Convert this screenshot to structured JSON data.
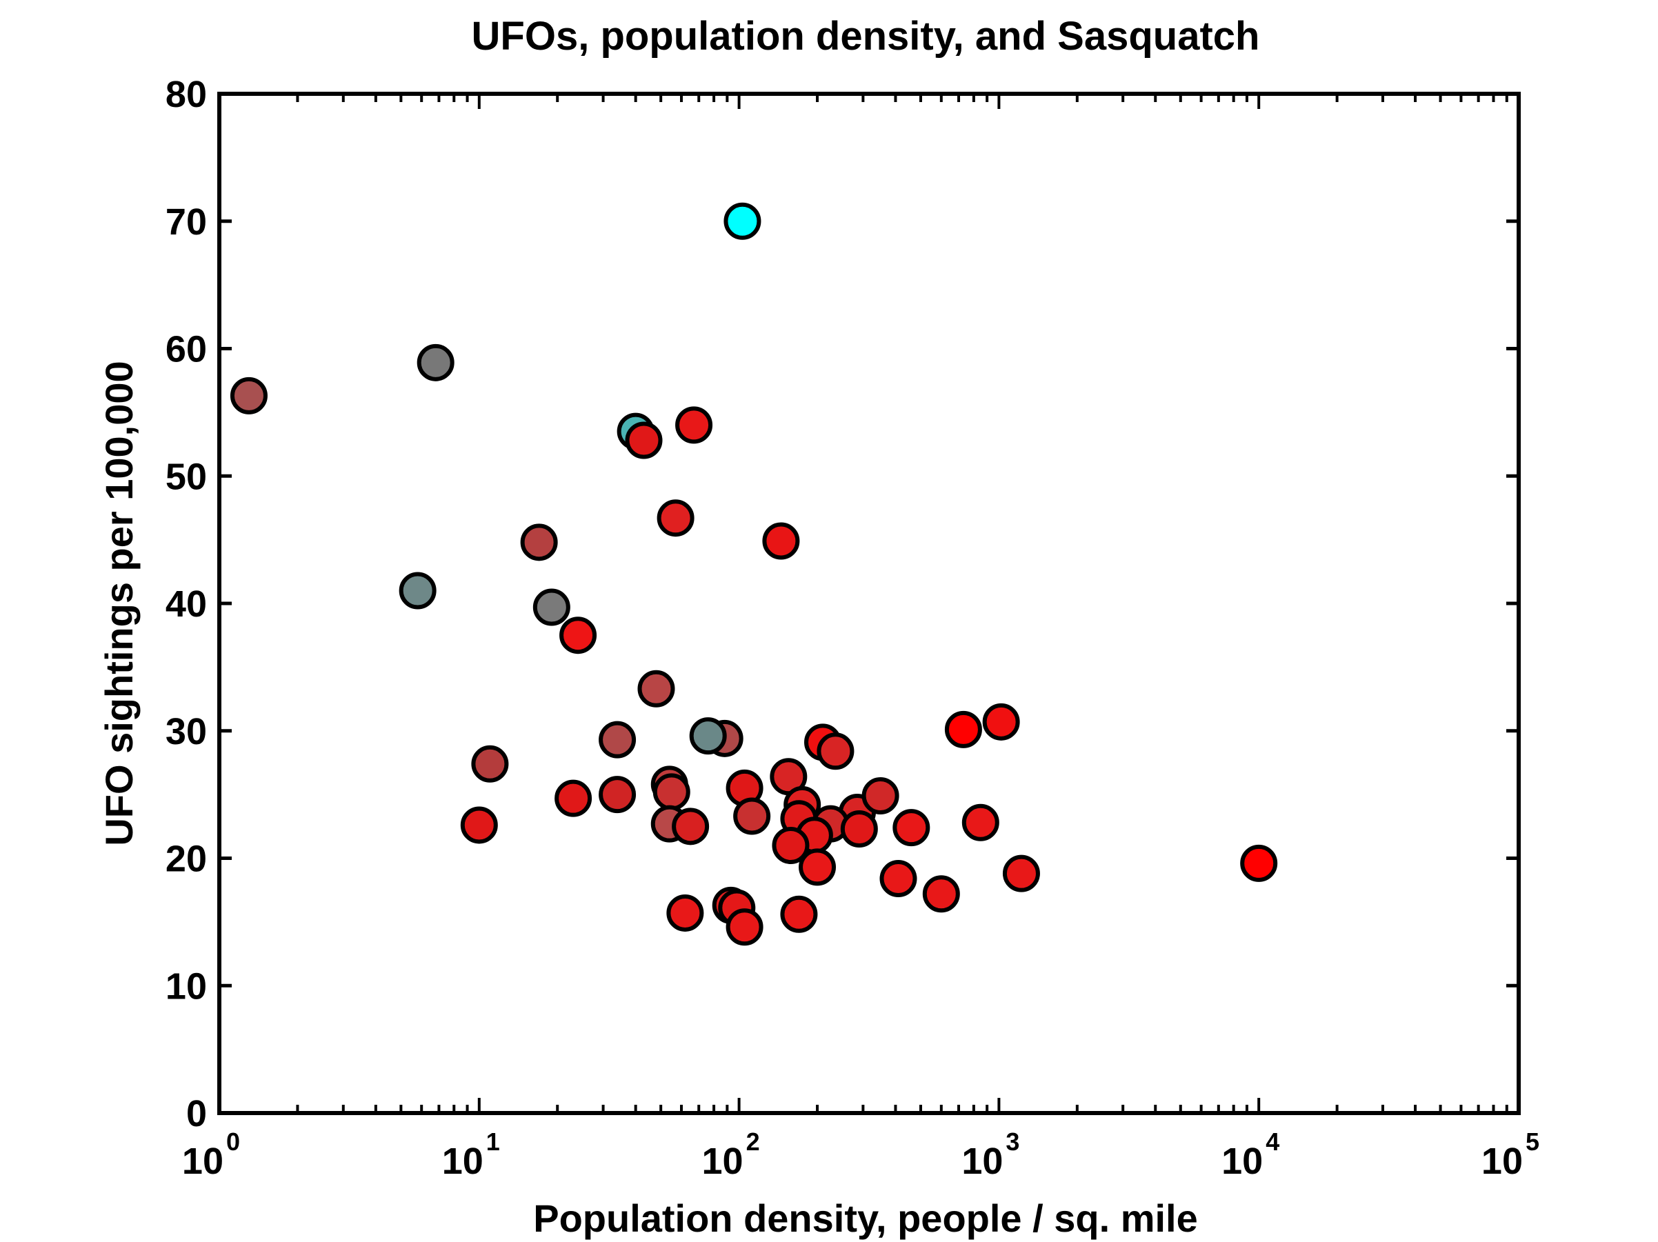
{
  "chart_data": {
    "type": "scatter",
    "title": "UFOs, population density, and Sasquatch",
    "xlabel": "Population density, people / sq. mile",
    "ylabel": "UFO sightings per 100,000",
    "xscale": "log",
    "xlim": [
      1,
      100000
    ],
    "ylim": [
      0,
      80
    ],
    "x_tick_base": "10",
    "x_tick_exponents": [
      "0",
      "1",
      "2",
      "3",
      "4",
      "5"
    ],
    "y_ticks": [
      "0",
      "10",
      "20",
      "30",
      "40",
      "50",
      "60",
      "70",
      "80"
    ],
    "grid": false,
    "points": [
      {
        "x": 1.3,
        "y": 56.3,
        "color": "#a85050"
      },
      {
        "x": 6.8,
        "y": 58.9,
        "color": "#787878"
      },
      {
        "x": 5.8,
        "y": 41.0,
        "color": "#6e8888"
      },
      {
        "x": 17,
        "y": 44.8,
        "color": "#b44040"
      },
      {
        "x": 19,
        "y": 39.7,
        "color": "#7a7a7a"
      },
      {
        "x": 24,
        "y": 37.5,
        "color": "#ee1515"
      },
      {
        "x": 40,
        "y": 53.5,
        "color": "#4ab4b4"
      },
      {
        "x": 43,
        "y": 52.8,
        "color": "#e01818"
      },
      {
        "x": 67,
        "y": 54.0,
        "color": "#e81818"
      },
      {
        "x": 57,
        "y": 46.7,
        "color": "#e02020"
      },
      {
        "x": 145,
        "y": 44.9,
        "color": "#e81515"
      },
      {
        "x": 103,
        "y": 70.0,
        "color": "#00ffff"
      },
      {
        "x": 48,
        "y": 33.3,
        "color": "#b84545"
      },
      {
        "x": 34,
        "y": 29.3,
        "color": "#b04848"
      },
      {
        "x": 11,
        "y": 27.4,
        "color": "#b43c3c"
      },
      {
        "x": 10,
        "y": 22.6,
        "color": "#e01818"
      },
      {
        "x": 23,
        "y": 24.7,
        "color": "#e01818"
      },
      {
        "x": 34,
        "y": 25.0,
        "color": "#d02424"
      },
      {
        "x": 88,
        "y": 29.4,
        "color": "#b04848"
      },
      {
        "x": 76,
        "y": 29.6,
        "color": "#6a8888"
      },
      {
        "x": 54,
        "y": 25.8,
        "color": "#c03c3c"
      },
      {
        "x": 55,
        "y": 25.2,
        "color": "#c83030"
      },
      {
        "x": 54,
        "y": 22.7,
        "color": "#b84848"
      },
      {
        "x": 65,
        "y": 22.5,
        "color": "#d82020"
      },
      {
        "x": 105,
        "y": 25.5,
        "color": "#e01818"
      },
      {
        "x": 112,
        "y": 23.3,
        "color": "#c83030"
      },
      {
        "x": 155,
        "y": 26.4,
        "color": "#d82424"
      },
      {
        "x": 175,
        "y": 24.2,
        "color": "#e02020"
      },
      {
        "x": 170,
        "y": 23.1,
        "color": "#e01a1a"
      },
      {
        "x": 210,
        "y": 29.1,
        "color": "#f01010"
      },
      {
        "x": 235,
        "y": 28.4,
        "color": "#d82424"
      },
      {
        "x": 285,
        "y": 23.6,
        "color": "#d82424"
      },
      {
        "x": 225,
        "y": 22.7,
        "color": "#d02828"
      },
      {
        "x": 195,
        "y": 21.8,
        "color": "#e41818"
      },
      {
        "x": 158,
        "y": 21.0,
        "color": "#e01818"
      },
      {
        "x": 200,
        "y": 19.3,
        "color": "#e81818"
      },
      {
        "x": 290,
        "y": 22.3,
        "color": "#e01818"
      },
      {
        "x": 350,
        "y": 24.9,
        "color": "#d02828"
      },
      {
        "x": 460,
        "y": 22.4,
        "color": "#e81818"
      },
      {
        "x": 410,
        "y": 18.4,
        "color": "#e81818"
      },
      {
        "x": 600,
        "y": 17.2,
        "color": "#e81818"
      },
      {
        "x": 62,
        "y": 15.7,
        "color": "#e81818"
      },
      {
        "x": 93,
        "y": 16.3,
        "color": "#e02020"
      },
      {
        "x": 98,
        "y": 16.1,
        "color": "#e41818"
      },
      {
        "x": 105,
        "y": 14.6,
        "color": "#e81818"
      },
      {
        "x": 170,
        "y": 15.6,
        "color": "#e81818"
      },
      {
        "x": 730,
        "y": 30.1,
        "color": "#ff0000"
      },
      {
        "x": 1020,
        "y": 30.7,
        "color": "#f01010"
      },
      {
        "x": 850,
        "y": 22.8,
        "color": "#e81818"
      },
      {
        "x": 1220,
        "y": 18.8,
        "color": "#e81818"
      },
      {
        "x": 10000,
        "y": 19.6,
        "color": "#ff0000"
      }
    ]
  }
}
